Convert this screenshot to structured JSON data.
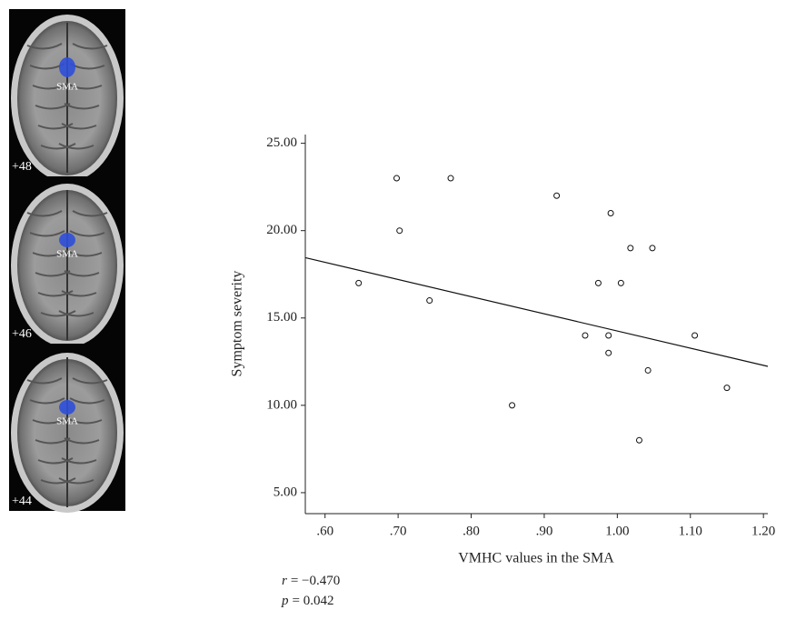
{
  "brain_slices": [
    {
      "label": "+48",
      "region": "SMA"
    },
    {
      "label": "+46",
      "region": "SMA"
    },
    {
      "label": "+44",
      "region": "SMA"
    }
  ],
  "chart_data": {
    "type": "scatter",
    "x_label": "VMHC values in the SMA",
    "y_label": "Symptom severity",
    "x": [
      0.646,
      0.698,
      0.702,
      0.743,
      0.772,
      0.856,
      0.917,
      0.956,
      0.974,
      0.988,
      0.988,
      0.991,
      1.005,
      1.018,
      1.03,
      1.042,
      1.048,
      1.106,
      1.15
    ],
    "values": [
      17,
      23,
      20,
      16,
      23,
      10,
      22,
      14,
      17,
      14,
      13,
      21,
      17,
      19,
      8,
      12,
      19,
      14,
      11
    ],
    "fit": {
      "x": [
        0.573,
        1.206
      ],
      "y": [
        18.45,
        12.23
      ]
    },
    "xlim": [
      0.573,
      1.206
    ],
    "ylim": [
      3.8,
      25.5
    ],
    "xticks": [
      {
        "value": 0.6,
        "label": ".60"
      },
      {
        "value": 0.7,
        "label": ".70"
      },
      {
        "value": 0.8,
        "label": ".80"
      },
      {
        "value": 0.9,
        "label": ".90"
      },
      {
        "value": 1.0,
        "label": "1.00"
      },
      {
        "value": 1.1,
        "label": "1.10"
      },
      {
        "value": 1.2,
        "label": "1.20"
      }
    ],
    "yticks": [
      {
        "value": 5,
        "label": "5.00"
      },
      {
        "value": 10,
        "label": "10.00"
      },
      {
        "value": 15,
        "label": "15.00"
      },
      {
        "value": 20,
        "label": "20.00"
      },
      {
        "value": 25,
        "label": "25.00"
      }
    ],
    "annotations": [
      {
        "symbol": "r",
        "text": "= −0.470"
      },
      {
        "symbol": "p",
        "text": "= 0.042"
      }
    ]
  }
}
